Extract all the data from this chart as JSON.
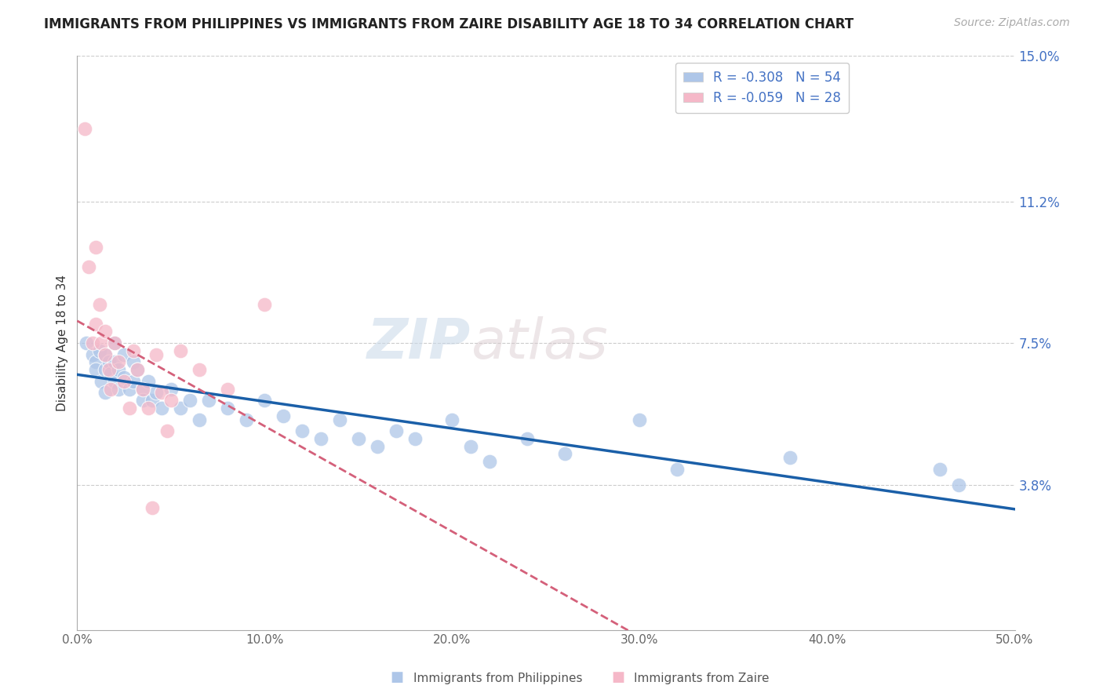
{
  "title": "IMMIGRANTS FROM PHILIPPINES VS IMMIGRANTS FROM ZAIRE DISABILITY AGE 18 TO 34 CORRELATION CHART",
  "source": "Source: ZipAtlas.com",
  "ylabel": "Disability Age 18 to 34",
  "xlim": [
    0.0,
    0.5
  ],
  "ylim": [
    0.0,
    0.15
  ],
  "yticks": [
    0.038,
    0.075,
    0.112,
    0.15
  ],
  "ytick_labels": [
    "3.8%",
    "7.5%",
    "11.2%",
    "15.0%"
  ],
  "xticks": [
    0.0,
    0.1,
    0.2,
    0.3,
    0.4,
    0.5
  ],
  "xtick_labels": [
    "0.0%",
    "10.0%",
    "20.0%",
    "30.0%",
    "40.0%",
    "50.0%"
  ],
  "legend_items": [
    {
      "label": "R = -0.308   N = 54",
      "color": "#aec6e8"
    },
    {
      "label": "R = -0.059   N = 28",
      "color": "#f5b8c8"
    }
  ],
  "legend_labels": [
    "Immigrants from Philippines",
    "Immigrants from Zaire"
  ],
  "philippines_color": "#aec6e8",
  "zaire_color": "#f5b8c8",
  "philippines_line_color": "#1a5fa8",
  "zaire_line_color": "#d4607a",
  "philippines_x": [
    0.005,
    0.008,
    0.01,
    0.01,
    0.012,
    0.013,
    0.015,
    0.015,
    0.015,
    0.017,
    0.018,
    0.02,
    0.02,
    0.02,
    0.022,
    0.022,
    0.025,
    0.025,
    0.028,
    0.03,
    0.03,
    0.032,
    0.035,
    0.035,
    0.038,
    0.04,
    0.042,
    0.045,
    0.05,
    0.055,
    0.06,
    0.065,
    0.07,
    0.08,
    0.09,
    0.1,
    0.11,
    0.12,
    0.13,
    0.14,
    0.15,
    0.16,
    0.17,
    0.18,
    0.2,
    0.21,
    0.22,
    0.24,
    0.26,
    0.3,
    0.32,
    0.38,
    0.46,
    0.47
  ],
  "philippines_y": [
    0.075,
    0.072,
    0.07,
    0.068,
    0.073,
    0.065,
    0.072,
    0.068,
    0.062,
    0.07,
    0.067,
    0.075,
    0.07,
    0.065,
    0.068,
    0.063,
    0.072,
    0.066,
    0.063,
    0.07,
    0.065,
    0.068,
    0.063,
    0.06,
    0.065,
    0.06,
    0.062,
    0.058,
    0.063,
    0.058,
    0.06,
    0.055,
    0.06,
    0.058,
    0.055,
    0.06,
    0.056,
    0.052,
    0.05,
    0.055,
    0.05,
    0.048,
    0.052,
    0.05,
    0.055,
    0.048,
    0.044,
    0.05,
    0.046,
    0.055,
    0.042,
    0.045,
    0.042,
    0.038
  ],
  "zaire_x": [
    0.004,
    0.006,
    0.008,
    0.01,
    0.01,
    0.012,
    0.013,
    0.015,
    0.015,
    0.017,
    0.018,
    0.02,
    0.022,
    0.025,
    0.028,
    0.03,
    0.032,
    0.035,
    0.038,
    0.04,
    0.042,
    0.045,
    0.048,
    0.05,
    0.055,
    0.065,
    0.08,
    0.1
  ],
  "zaire_y": [
    0.131,
    0.095,
    0.075,
    0.08,
    0.1,
    0.085,
    0.075,
    0.078,
    0.072,
    0.068,
    0.063,
    0.075,
    0.07,
    0.065,
    0.058,
    0.073,
    0.068,
    0.063,
    0.058,
    0.032,
    0.072,
    0.062,
    0.052,
    0.06,
    0.073,
    0.068,
    0.063,
    0.085
  ],
  "watermark_part1": "ZIP",
  "watermark_part2": "atlas",
  "background_color": "#ffffff",
  "grid_color": "#cccccc"
}
